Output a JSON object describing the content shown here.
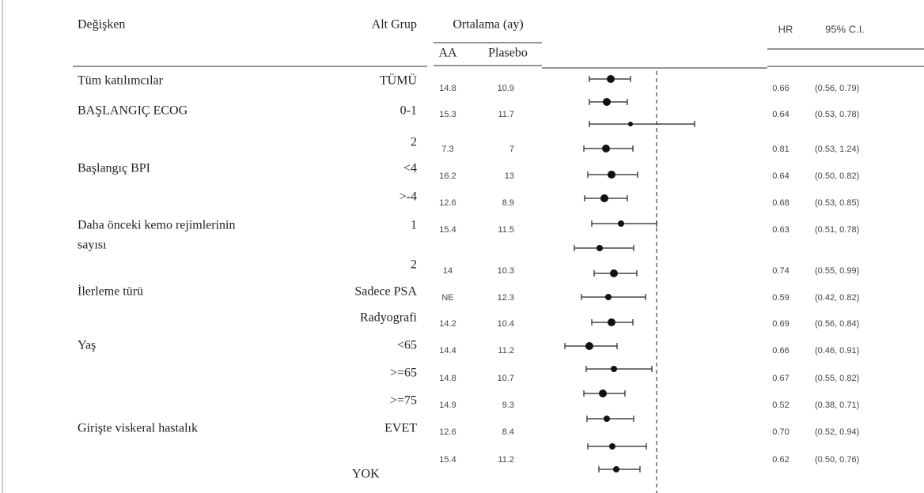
{
  "header": {
    "variable": "Değişken",
    "subgroup": "Alt Grup",
    "mean": "Ortalama (ay)",
    "aa": "AA",
    "placebo": "Plasebo",
    "hr": "HR",
    "ci": "95% C.I."
  },
  "table": {
    "rows": [
      {
        "variable": "Tüm katılımcılar",
        "subgroup": "TÜMÜ",
        "aa": "14.8",
        "placebo": "10.9",
        "hr": "0.66",
        "ci": "(0.56, 0.79)"
      },
      {
        "variable": "BAŞLANGIÇ ECOG",
        "subgroup": "0-1",
        "aa": "15.3",
        "placebo": "11.7",
        "hr": "0.64",
        "ci": "(0.53, 0.78)"
      },
      {
        "subgroup": "2",
        "aa": "7.3",
        "placebo": "7",
        "hr": "0.81",
        "ci": "(0.53, 1.24)"
      },
      {
        "variable": "Başlangıç BPI",
        "subgroup": "<4",
        "aa": "16.2",
        "placebo": "13",
        "hr": "0.64",
        "ci": "(0.50, 0.82)"
      },
      {
        "subgroup": ">-4",
        "aa": "12.6",
        "placebo": "8.9",
        "hr": "0.68",
        "ci": "(0.53, 0.85)"
      },
      {
        "variable": "Daha önceki kemo rejimlerinin",
        "variable_line2": "sayısı",
        "subgroup": "1",
        "aa": "15.4",
        "placebo": "11.5",
        "hr": "0.63",
        "ci": "(0.51, 0.78)"
      },
      {
        "subgroup": "2",
        "aa": "14",
        "placebo": "10.3",
        "hr": "0.74",
        "ci": "(0.55, 0.99)"
      },
      {
        "variable": "İlerleme türü",
        "subgroup": "Sadece PSA",
        "aa": "NE",
        "placebo": "12.3",
        "hr": "0.59",
        "ci": "(0.42, 0.82)"
      },
      {
        "subgroup": "Radyografi",
        "aa": "14.2",
        "placebo": "10.4",
        "hr": "0.69",
        "ci": "(0.56, 0.84)"
      },
      {
        "variable": "Yaş",
        "subgroup": "<65",
        "aa": "14.4",
        "placebo": "11.2",
        "hr": "0.66",
        "ci": "(0.46, 0.91)"
      },
      {
        "subgroup": ">=65",
        "aa": "14.8",
        "placebo": "10.7",
        "hr": "0.67",
        "ci": "(0.55, 0.82)"
      },
      {
        "subgroup": ">=75",
        "aa": "14.9",
        "placebo": "9.3",
        "hr": "0.52",
        "ci": "(0.38, 0.71)"
      },
      {
        "variable": "Girişte viskeral hastalık",
        "subgroup": "EVET",
        "aa": "12.6",
        "placebo": "8.4",
        "hr": "0.70",
        "ci": "(0.52, 0.94)"
      },
      {
        "subgroup": "YOK",
        "aa": "15.4",
        "placebo": "11.2",
        "hr": "0.62",
        "ci": "(0.50, 0.76)"
      }
    ]
  }
}
